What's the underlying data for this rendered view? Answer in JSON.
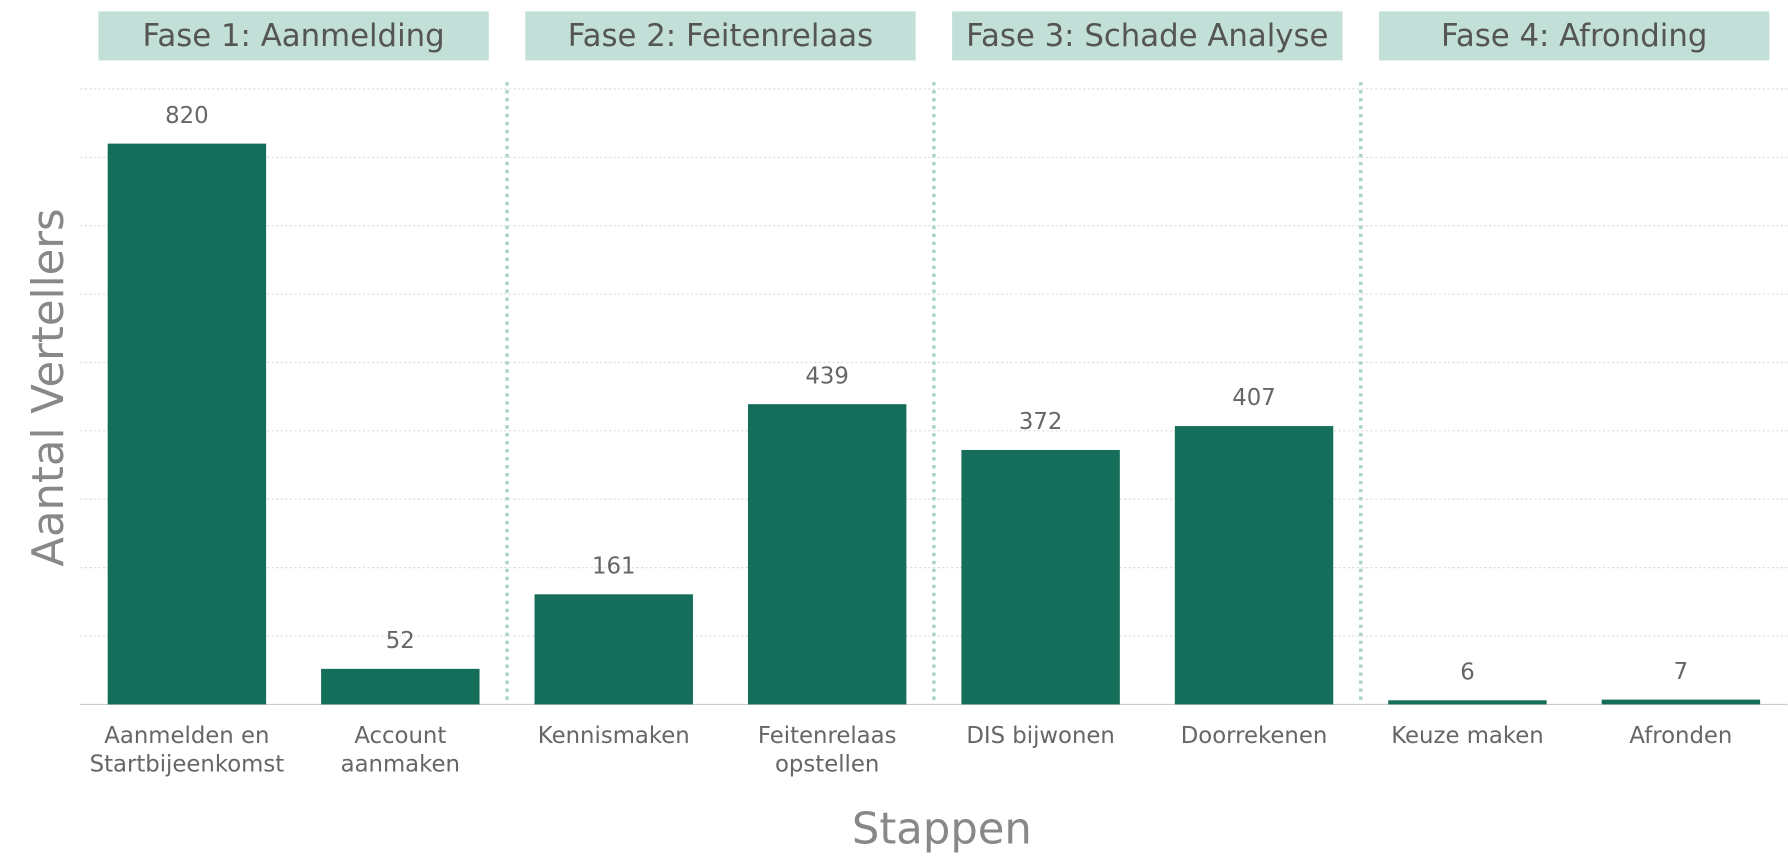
{
  "chart_data": {
    "type": "bar",
    "phases": [
      "Fase 1: Aanmelding",
      "Fase 2: Feitenrelaas",
      "Fase 3: Schade Analyse",
      "Fase 4: Afronding"
    ],
    "categories": [
      [
        "Aanmelden en",
        "Startbijeenkomst"
      ],
      [
        "Account",
        "aanmaken"
      ],
      [
        "Kennismaken"
      ],
      [
        "Feitenrelaas",
        "opstellen"
      ],
      [
        "DIS bijwonen"
      ],
      [
        "Doorrekenen"
      ],
      [
        "Keuze maken"
      ],
      [
        "Afronden"
      ]
    ],
    "values": [
      820,
      52,
      161,
      439,
      372,
      407,
      6,
      7
    ],
    "color": "#156e5a",
    "phase_color": "#c2e0d8",
    "ylabel": "Aantal Vertellers",
    "xlabel": "Stappen",
    "ylim": [
      0,
      900
    ],
    "yticks": [
      0,
      100,
      200,
      300,
      400,
      500,
      600,
      700,
      800,
      900
    ],
    "grid": true
  }
}
